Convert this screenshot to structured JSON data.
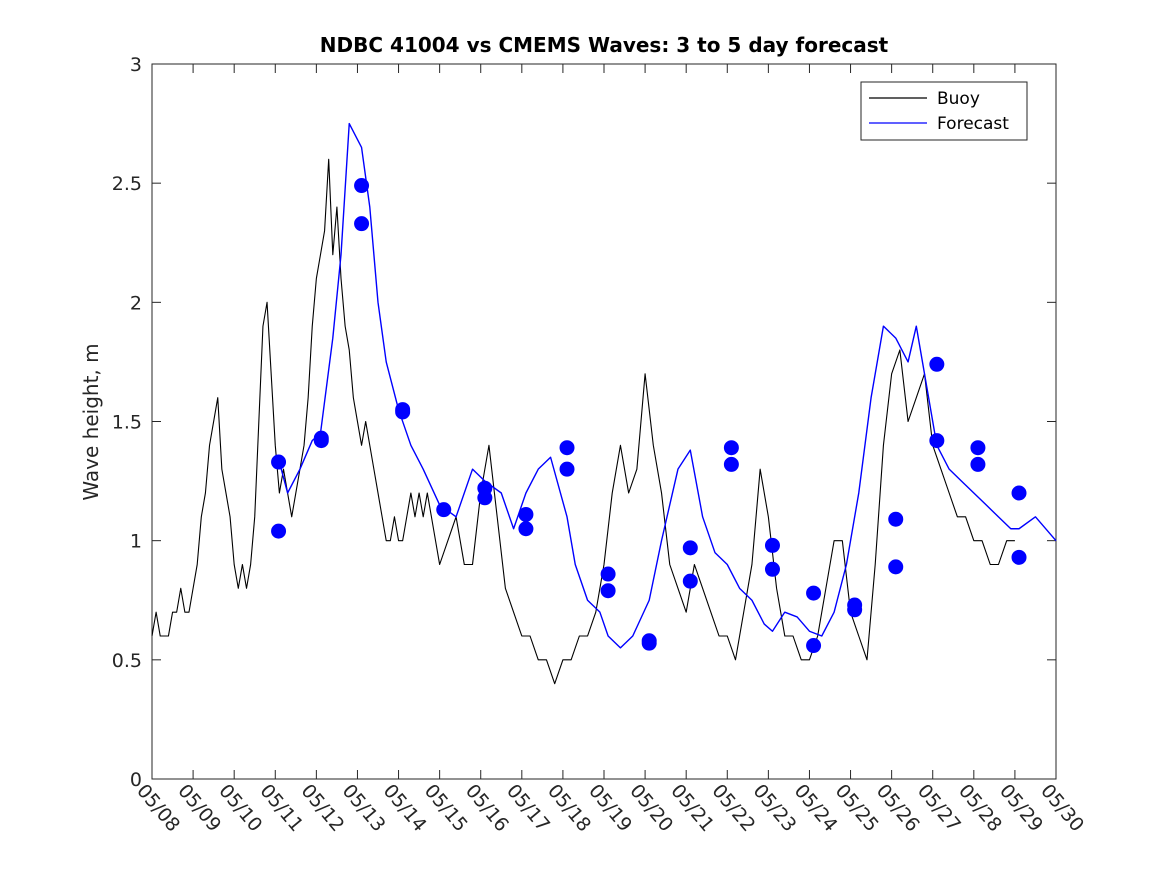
{
  "chart_data": {
    "type": "line",
    "title": "NDBC 41004 vs CMEMS Waves: 3 to 5 day forecast",
    "xlabel": "",
    "ylabel": "Wave height, m",
    "xlim": [
      0,
      22
    ],
    "ylim": [
      0,
      3
    ],
    "x_tick_labels": [
      "05/08",
      "05/09",
      "05/10",
      "05/11",
      "05/12",
      "05/13",
      "05/14",
      "05/15",
      "05/16",
      "05/17",
      "05/18",
      "05/19",
      "05/20",
      "05/21",
      "05/22",
      "05/23",
      "05/24",
      "05/25",
      "05/26",
      "05/27",
      "05/28",
      "05/29",
      "05/30"
    ],
    "y_ticks": [
      0,
      0.5,
      1,
      1.5,
      2,
      2.5,
      3
    ],
    "y_tick_labels": [
      "0",
      "0.5",
      "1",
      "1.5",
      "2",
      "2.5",
      "3"
    ],
    "grid": false,
    "legend_position": "top-right",
    "legend": [
      {
        "label": "Buoy",
        "color": "#000000"
      },
      {
        "label": "Forecast",
        "color": "#0000ff"
      }
    ],
    "series": [
      {
        "name": "Buoy",
        "color": "#000000",
        "x": [
          0,
          0.1,
          0.2,
          0.3,
          0.4,
          0.5,
          0.6,
          0.7,
          0.8,
          0.9,
          1.0,
          1.1,
          1.2,
          1.3,
          1.4,
          1.5,
          1.6,
          1.7,
          1.8,
          1.9,
          2.0,
          2.1,
          2.2,
          2.3,
          2.4,
          2.5,
          2.6,
          2.7,
          2.8,
          2.9,
          3.0,
          3.1,
          3.2,
          3.3,
          3.4,
          3.5,
          3.6,
          3.7,
          3.8,
          3.9,
          4.0,
          4.1,
          4.2,
          4.3,
          4.4,
          4.5,
          4.6,
          4.7,
          4.8,
          4.9,
          5.0,
          5.1,
          5.2,
          5.3,
          5.4,
          5.5,
          5.6,
          5.7,
          5.8,
          5.9,
          6.0,
          6.1,
          6.2,
          6.3,
          6.4,
          6.5,
          6.6,
          6.7,
          6.8,
          6.9,
          7.0,
          7.2,
          7.4,
          7.6,
          7.8,
          8.0,
          8.2,
          8.4,
          8.6,
          8.8,
          9.0,
          9.2,
          9.4,
          9.6,
          9.8,
          10.0,
          10.2,
          10.4,
          10.6,
          10.8,
          11.0,
          11.2,
          11.4,
          11.6,
          11.8,
          12.0,
          12.2,
          12.4,
          12.6,
          12.8,
          13.0,
          13.2,
          13.4,
          13.6,
          13.8,
          14.0,
          14.2,
          14.4,
          14.6,
          14.8,
          15.0,
          15.2,
          15.4,
          15.6,
          15.8,
          16.0,
          16.2,
          16.4,
          16.6,
          16.8,
          17.0,
          17.2,
          17.4,
          17.6,
          17.8,
          18.0,
          18.2,
          18.4,
          18.6,
          18.8,
          19.0,
          19.2,
          19.4,
          19.6,
          19.8,
          20.0,
          20.2,
          20.4,
          20.6,
          20.8,
          21.0
        ],
        "y": [
          0.6,
          0.7,
          0.6,
          0.6,
          0.6,
          0.7,
          0.7,
          0.8,
          0.7,
          0.7,
          0.8,
          0.9,
          1.1,
          1.2,
          1.4,
          1.5,
          1.6,
          1.3,
          1.2,
          1.1,
          0.9,
          0.8,
          0.9,
          0.8,
          0.9,
          1.1,
          1.5,
          1.9,
          2.0,
          1.7,
          1.4,
          1.2,
          1.3,
          1.2,
          1.1,
          1.2,
          1.3,
          1.4,
          1.6,
          1.9,
          2.1,
          2.2,
          2.3,
          2.6,
          2.2,
          2.4,
          2.1,
          1.9,
          1.8,
          1.6,
          1.5,
          1.4,
          1.5,
          1.4,
          1.3,
          1.2,
          1.1,
          1.0,
          1.0,
          1.1,
          1.0,
          1.0,
          1.1,
          1.2,
          1.1,
          1.2,
          1.1,
          1.2,
          1.1,
          1.0,
          0.9,
          1.0,
          1.1,
          0.9,
          0.9,
          1.2,
          1.4,
          1.1,
          0.8,
          0.7,
          0.6,
          0.6,
          0.5,
          0.5,
          0.4,
          0.5,
          0.5,
          0.6,
          0.6,
          0.7,
          0.9,
          1.2,
          1.4,
          1.2,
          1.3,
          1.7,
          1.4,
          1.2,
          0.9,
          0.8,
          0.7,
          0.9,
          0.8,
          0.7,
          0.6,
          0.6,
          0.5,
          0.7,
          0.9,
          1.3,
          1.1,
          0.8,
          0.6,
          0.6,
          0.5,
          0.5,
          0.6,
          0.8,
          1.0,
          1.0,
          0.7,
          0.6,
          0.5,
          0.9,
          1.4,
          1.7,
          1.8,
          1.5,
          1.6,
          1.7,
          1.4,
          1.3,
          1.2,
          1.1,
          1.1,
          1.0,
          1.0,
          0.9,
          0.9,
          1.0,
          1.0
        ]
      },
      {
        "name": "Forecast",
        "color": "#0000ff",
        "x": [
          3.1,
          3.3,
          3.6,
          3.9,
          4.1,
          4.4,
          4.6,
          4.8,
          5.1,
          5.3,
          5.5,
          5.7,
          6.0,
          6.3,
          6.6,
          7.0,
          7.4,
          7.8,
          8.1,
          8.5,
          8.8,
          9.1,
          9.4,
          9.7,
          10.1,
          10.3,
          10.6,
          10.9,
          11.1,
          11.4,
          11.7,
          12.1,
          12.4,
          12.8,
          13.1,
          13.4,
          13.7,
          14.0,
          14.3,
          14.6,
          14.9,
          15.1,
          15.4,
          15.7,
          16.0,
          16.3,
          16.6,
          16.9,
          17.2,
          17.5,
          17.8,
          18.1,
          18.4,
          18.6,
          18.9,
          19.1,
          19.4,
          19.7,
          20.0,
          20.3,
          20.6,
          20.9,
          21.1,
          21.5,
          22.0
        ],
        "y": [
          1.33,
          1.2,
          1.3,
          1.42,
          1.45,
          1.85,
          2.2,
          2.75,
          2.65,
          2.4,
          2.0,
          1.75,
          1.55,
          1.4,
          1.3,
          1.15,
          1.1,
          1.3,
          1.25,
          1.2,
          1.05,
          1.2,
          1.3,
          1.35,
          1.1,
          0.9,
          0.75,
          0.7,
          0.6,
          0.55,
          0.6,
          0.75,
          1.0,
          1.3,
          1.38,
          1.1,
          0.95,
          0.9,
          0.8,
          0.75,
          0.65,
          0.62,
          0.7,
          0.68,
          0.62,
          0.6,
          0.7,
          0.9,
          1.2,
          1.6,
          1.9,
          1.85,
          1.75,
          1.9,
          1.6,
          1.4,
          1.3,
          1.25,
          1.2,
          1.15,
          1.1,
          1.05,
          1.05,
          1.1,
          1.0
        ]
      }
    ],
    "markers": {
      "name": "Forecast",
      "color": "#0000ff",
      "points": [
        [
          3.08,
          1.33
        ],
        [
          3.08,
          1.04
        ],
        [
          4.12,
          1.43
        ],
        [
          4.12,
          1.42
        ],
        [
          5.1,
          2.49
        ],
        [
          5.1,
          2.33
        ],
        [
          6.1,
          1.55
        ],
        [
          6.1,
          1.54
        ],
        [
          7.1,
          1.13
        ],
        [
          8.1,
          1.22
        ],
        [
          8.1,
          1.18
        ],
        [
          9.1,
          1.11
        ],
        [
          9.1,
          1.05
        ],
        [
          10.1,
          1.39
        ],
        [
          10.1,
          1.3
        ],
        [
          11.1,
          0.86
        ],
        [
          11.1,
          0.79
        ],
        [
          12.1,
          0.58
        ],
        [
          12.1,
          0.57
        ],
        [
          13.1,
          0.97
        ],
        [
          13.1,
          0.83
        ],
        [
          14.1,
          1.39
        ],
        [
          14.1,
          1.32
        ],
        [
          15.1,
          0.98
        ],
        [
          15.1,
          0.88
        ],
        [
          16.1,
          0.78
        ],
        [
          16.1,
          0.56
        ],
        [
          17.1,
          0.73
        ],
        [
          17.1,
          0.71
        ],
        [
          18.1,
          1.09
        ],
        [
          18.1,
          0.89
        ],
        [
          19.1,
          1.74
        ],
        [
          19.1,
          1.42
        ],
        [
          20.1,
          1.39
        ],
        [
          20.1,
          1.32
        ],
        [
          21.1,
          1.2
        ],
        [
          21.1,
          0.93
        ]
      ]
    }
  }
}
